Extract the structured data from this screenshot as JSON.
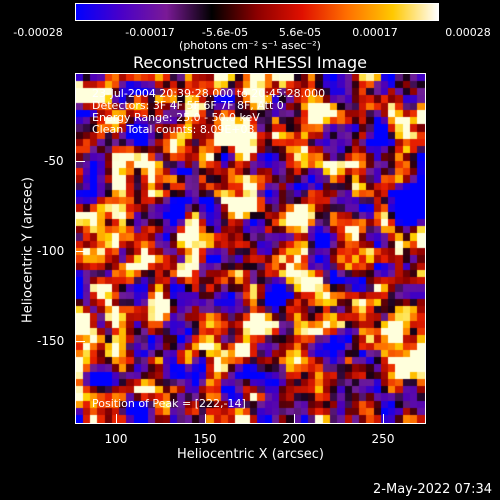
{
  "colorbar": {
    "tick_labels": [
      "-0.00028",
      "-0.00017",
      "-5.6e-05",
      "5.6e-05",
      "0.00017",
      "0.00028"
    ],
    "units": "(photons cm⁻² s⁻¹ asec⁻²)",
    "colors": [
      "#0000ff",
      "#4a00c8",
      "#7a1a96",
      "#000000",
      "#8c0000",
      "#e01000",
      "#ff7000",
      "#ffc800",
      "#ffffff"
    ]
  },
  "title": "Reconstructed RHESSI Image",
  "info": {
    "time": "23-Jul-2004 20:39:28.000 to 20:45:28.000",
    "detectors": "Detectors: 3F 4F 5F 6F 7F 8F, Att 0",
    "energy": "Energy Range: 25.0 - 50.0 keV",
    "method": "Clean     Total counts: 8.09E+03",
    "peak": "Position of Peak = [222,-14]"
  },
  "axes": {
    "xlabel": "Heliocentric X (arcsec)",
    "ylabel": "Heliocentric Y (arcsec)",
    "xticks": [
      "100",
      "150",
      "200",
      "250"
    ],
    "yticks": [
      "-50",
      "-100",
      "-150"
    ]
  },
  "footer": "2-May-2022 07:34"
}
